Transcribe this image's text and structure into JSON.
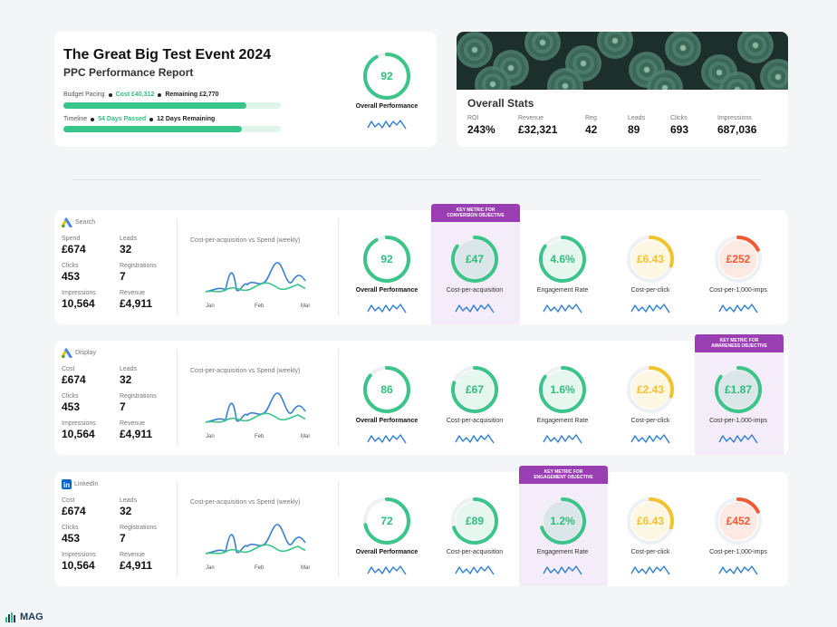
{
  "header": {
    "title": "The Great Big Test Event 2024",
    "subtitle": "PPC Performance Report",
    "budget": {
      "label": "Budget Pacing",
      "cost": "Cost £40,312",
      "remaining": "Remaining £2,770",
      "progress": 0.84
    },
    "timeline": {
      "label": "Timeline",
      "passed": "54 Days Passed",
      "remaining": "12 Days Remaining",
      "progress": 0.82
    },
    "overall": {
      "value": "92",
      "label": "Overall Performance",
      "fraction": 0.92
    }
  },
  "overall_stats": {
    "title": "Overall Stats",
    "items": [
      {
        "label": "ROI",
        "value": "243%"
      },
      {
        "label": "Revenue",
        "value": "£32,321"
      },
      {
        "label": "Reg",
        "value": "42"
      },
      {
        "label": "Leads",
        "value": "89"
      },
      {
        "label": "Clicks",
        "value": "693"
      },
      {
        "label": "Impressions",
        "value": "687,036"
      }
    ]
  },
  "channels": [
    {
      "name": "Search",
      "icon": "google-ads-icon",
      "stats": [
        {
          "label": "Spend",
          "value": "£674"
        },
        {
          "label": "Leads",
          "value": "32"
        },
        {
          "label": "Clicks",
          "value": "453"
        },
        {
          "label": "Registrations",
          "value": "7"
        },
        {
          "label": "Impressions",
          "value": "10,564"
        },
        {
          "label": "Revenue",
          "value": "£4,911"
        }
      ],
      "chart_title": "Cost-per-acquisition vs Spend (weekly)",
      "chart_x": [
        "Jan",
        "Feb",
        "Mar"
      ],
      "badge": "KEY METRIC FOR\nCONVERSION OBJECTIVE",
      "highlight_index": 1,
      "metrics": [
        {
          "value": "92",
          "label": "Overall Performance",
          "color": "#3cc48a",
          "fraction": 0.92,
          "bold": true
        },
        {
          "value": "£47",
          "label": "Cost-per-acquisition",
          "color": "#3cc48a",
          "fraction": 0.85
        },
        {
          "value": "4.6%",
          "label": "Engagement Rate",
          "color": "#3cc48a",
          "fraction": 0.85
        },
        {
          "value": "£6.43",
          "label": "Cost-per-click",
          "color": "#f2c230",
          "fraction": 0.3
        },
        {
          "value": "£252",
          "label": "Cost-per-1,000-imps",
          "color": "#ee5a33",
          "fraction": 0.18
        }
      ]
    },
    {
      "name": "Display",
      "icon": "google-ads-icon",
      "stats": [
        {
          "label": "Cost",
          "value": "£674"
        },
        {
          "label": "Leads",
          "value": "32"
        },
        {
          "label": "Clicks",
          "value": "453"
        },
        {
          "label": "Registrations",
          "value": "7"
        },
        {
          "label": "Impressions",
          "value": "10,564"
        },
        {
          "label": "Revenue",
          "value": "£4,911"
        }
      ],
      "chart_title": "Cost-per-acquisition vs Spend (weekly)",
      "chart_x": [
        "Jan",
        "Feb",
        "Mar"
      ],
      "badge": "KEY METRIC FOR\nAWARENESS OBJECTIVE",
      "highlight_index": 4,
      "metrics": [
        {
          "value": "86",
          "label": "Overall Performance",
          "color": "#3cc48a",
          "fraction": 0.86,
          "bold": true
        },
        {
          "value": "£67",
          "label": "Cost-per-acquisition",
          "color": "#3cc48a",
          "fraction": 0.8
        },
        {
          "value": "1.6%",
          "label": "Engagement Rate",
          "color": "#3cc48a",
          "fraction": 0.85
        },
        {
          "value": "£2.43",
          "label": "Cost-per-click",
          "color": "#f2c230",
          "fraction": 0.3
        },
        {
          "value": "£1.87",
          "label": "Cost-per-1,000-imps",
          "color": "#3cc48a",
          "fraction": 0.85
        }
      ]
    },
    {
      "name": "LinkedIn",
      "icon": "linkedin-icon",
      "stats": [
        {
          "label": "Cost",
          "value": "£674"
        },
        {
          "label": "Leads",
          "value": "32"
        },
        {
          "label": "Clicks",
          "value": "453"
        },
        {
          "label": "Registrations",
          "value": "7"
        },
        {
          "label": "Impressions",
          "value": "10,564"
        },
        {
          "label": "Revenue",
          "value": "£4,911"
        }
      ],
      "chart_title": "Cost-per-acquisition vs Spend (weekly)",
      "chart_x": [
        "Jan",
        "Feb",
        "Mar"
      ],
      "badge": "KEY METRIC FOR\nENGAGEMENT OBJECTIVE",
      "highlight_index": 2,
      "metrics": [
        {
          "value": "72",
          "label": "Overall Performance",
          "color": "#3cc48a",
          "fraction": 0.72,
          "bold": true
        },
        {
          "value": "£89",
          "label": "Cost-per-acquisition",
          "color": "#3cc48a",
          "fraction": 0.7
        },
        {
          "value": "1.2%",
          "label": "Engagement Rate",
          "color": "#3cc48a",
          "fraction": 0.7
        },
        {
          "value": "£6.43",
          "label": "Cost-per-click",
          "color": "#f2c230",
          "fraction": 0.3
        },
        {
          "value": "£452",
          "label": "Cost-per-1,000-imps",
          "color": "#ee5a33",
          "fraction": 0.18
        }
      ]
    }
  ],
  "brand": {
    "logo_text": "MAG"
  }
}
